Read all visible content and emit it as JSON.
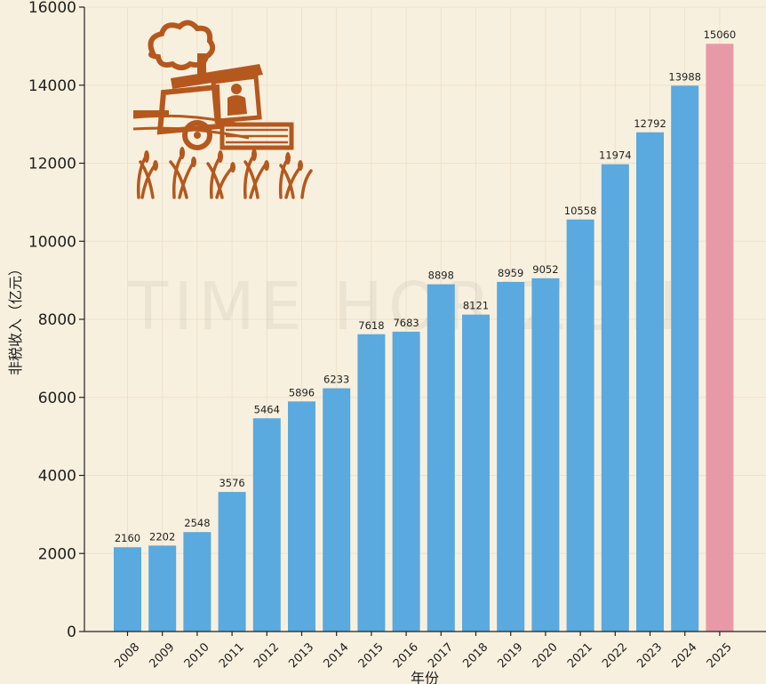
{
  "watermark": "TIME HORIZON",
  "colors": {
    "background": "#f8f0de",
    "bar": "#5aa9df",
    "highlight_bar": "#e899a8",
    "grid": "#ece2cc",
    "illustration": "#b5581e"
  },
  "chart_data": {
    "type": "bar",
    "title": "",
    "xlabel": "年份",
    "ylabel": "非税收入（亿元）",
    "categories": [
      "2008",
      "2009",
      "2010",
      "2011",
      "2012",
      "2013",
      "2014",
      "2015",
      "2016",
      "2017",
      "2018",
      "2019",
      "2020",
      "2021",
      "2022",
      "2023",
      "2024",
      "2025"
    ],
    "values": [
      2160,
      2202,
      2548,
      3576,
      5464,
      5896,
      6233,
      7618,
      7683,
      8898,
      8121,
      8959,
      9052,
      10558,
      11974,
      12792,
      13988,
      15060
    ],
    "highlight_category": "2025",
    "ylim": [
      0,
      16000
    ],
    "yticks": [
      0,
      2000,
      4000,
      6000,
      8000,
      10000,
      12000,
      14000,
      16000
    ],
    "grid": true,
    "legend": "none"
  }
}
